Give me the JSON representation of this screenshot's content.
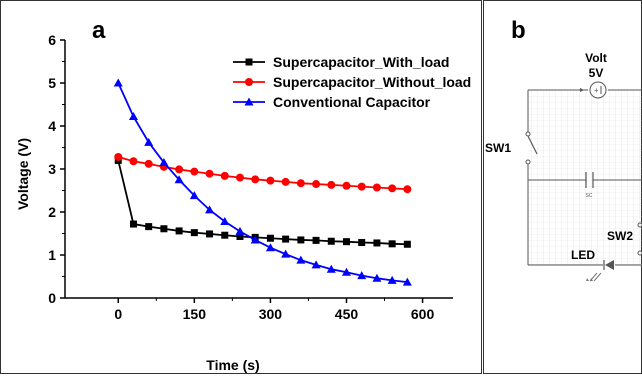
{
  "chart_data": {
    "type": "line",
    "panel_label": "a",
    "xlabel": "Time (s)",
    "ylabel": "Voltage (V)",
    "xlim": [
      -105,
      660
    ],
    "ylim": [
      0,
      6
    ],
    "xticks": [
      0,
      150,
      300,
      450,
      600
    ],
    "yticks": [
      0,
      1,
      2,
      3,
      4,
      5,
      6
    ],
    "grid": false,
    "legend_position": "top-right",
    "series": [
      {
        "name": "Supercapacitor_With_load",
        "color": "#000000",
        "marker": "square",
        "x": [
          0,
          30,
          60,
          90,
          120,
          150,
          180,
          210,
          240,
          270,
          300,
          330,
          360,
          390,
          420,
          450,
          480,
          510,
          540,
          570
        ],
        "y": [
          3.2,
          1.72,
          1.66,
          1.61,
          1.56,
          1.52,
          1.49,
          1.46,
          1.43,
          1.41,
          1.39,
          1.37,
          1.35,
          1.34,
          1.32,
          1.31,
          1.29,
          1.28,
          1.26,
          1.25
        ]
      },
      {
        "name": "Supercapacitor_Without_load",
        "color": "#ff0000",
        "marker": "circle",
        "x": [
          0,
          30,
          60,
          90,
          120,
          150,
          180,
          210,
          240,
          270,
          300,
          330,
          360,
          390,
          420,
          450,
          480,
          510,
          540,
          570
        ],
        "y": [
          3.28,
          3.18,
          3.12,
          3.05,
          2.99,
          2.94,
          2.89,
          2.84,
          2.8,
          2.76,
          2.73,
          2.7,
          2.67,
          2.65,
          2.63,
          2.61,
          2.59,
          2.57,
          2.55,
          2.53
        ]
      },
      {
        "name": "Conventional Capacitor",
        "color": "#0000ff",
        "marker": "triangle",
        "x": [
          0,
          30,
          60,
          90,
          120,
          150,
          180,
          210,
          240,
          270,
          300,
          330,
          360,
          390,
          420,
          450,
          480,
          510,
          540,
          570
        ],
        "y": [
          5.0,
          4.22,
          3.62,
          3.15,
          2.75,
          2.38,
          2.05,
          1.78,
          1.55,
          1.35,
          1.17,
          1.02,
          0.88,
          0.77,
          0.67,
          0.6,
          0.52,
          0.46,
          0.41,
          0.37
        ]
      }
    ]
  },
  "circuit": {
    "panel_label": "b",
    "source_label": "Volt",
    "source_value": "5V",
    "switch1_label": "SW1",
    "switch2_label": "SW2",
    "capacitor_label": "SC",
    "led_label": "LED"
  }
}
